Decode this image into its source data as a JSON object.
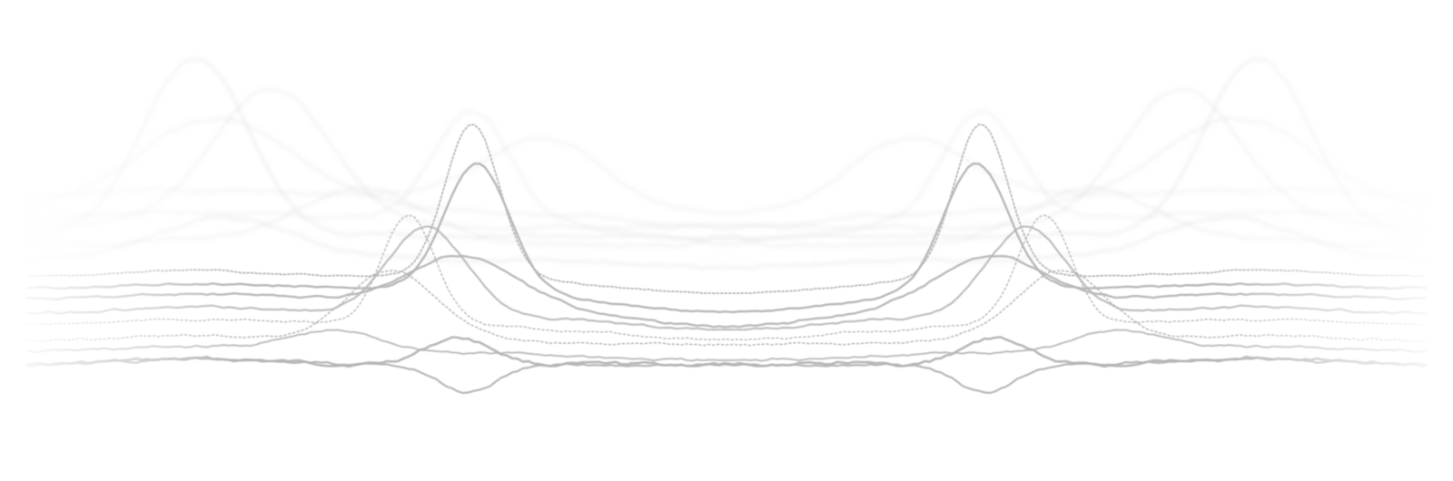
{
  "artwork": {
    "kind": "decorative-wave-lines",
    "symmetry": "mirrored-left-right",
    "background_color": "#ffffff",
    "line_color": "#b4b4b4",
    "edge_fade": true,
    "line_styles": [
      "solid",
      "dotted"
    ]
  }
}
